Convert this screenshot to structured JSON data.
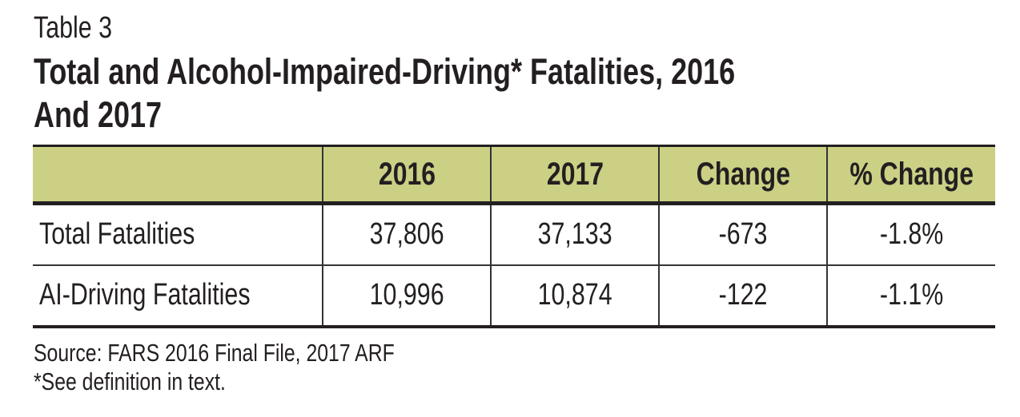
{
  "table_label": "Table 3",
  "title_line1": "Total and Alcohol-Impaired-Driving* Fatalities, 2016",
  "title_line2": "And 2017",
  "header_color": "#cbd085",
  "columns": [
    "",
    "2016",
    "2017",
    "Change",
    "% Change"
  ],
  "rows": [
    {
      "label": "Total Fatalities",
      "y2016": "37,806",
      "y2017": "37,133",
      "change": "-673",
      "pct_change": "-1.8%"
    },
    {
      "label": "AI-Driving Fatalities",
      "y2016": "10,996",
      "y2017": "10,874",
      "change": "-122",
      "pct_change": "-1.1%"
    }
  ],
  "source": "Source: FARS 2016 Final File, 2017 ARF",
  "footnote": "*See definition in text."
}
